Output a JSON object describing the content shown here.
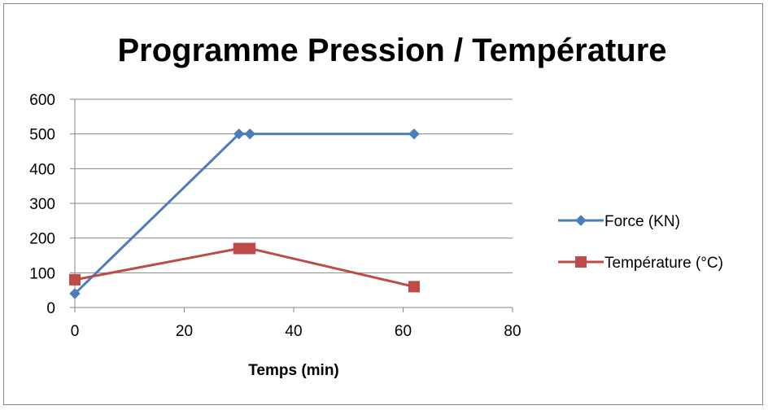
{
  "chart_data": {
    "type": "line",
    "title": "Programme Pression / Température",
    "xlabel": "Temps (min)",
    "ylabel": "",
    "xlim": [
      0,
      80
    ],
    "ylim": [
      0,
      600
    ],
    "xticks": [
      0,
      20,
      40,
      60,
      80
    ],
    "yticks": [
      0,
      100,
      200,
      300,
      400,
      500,
      600
    ],
    "grid": "horizontal",
    "legend_position": "right",
    "series": [
      {
        "name": "Force (KN)",
        "color": "#4a7ebb",
        "marker": "diamond",
        "points": [
          [
            0,
            40
          ],
          [
            30,
            500
          ],
          [
            32,
            500
          ],
          [
            62,
            500
          ]
        ]
      },
      {
        "name": "Température (°C)",
        "color": "#be4b48",
        "marker": "square",
        "points": [
          [
            0,
            80
          ],
          [
            30,
            170
          ],
          [
            32,
            170
          ],
          [
            62,
            60
          ]
        ]
      }
    ]
  }
}
